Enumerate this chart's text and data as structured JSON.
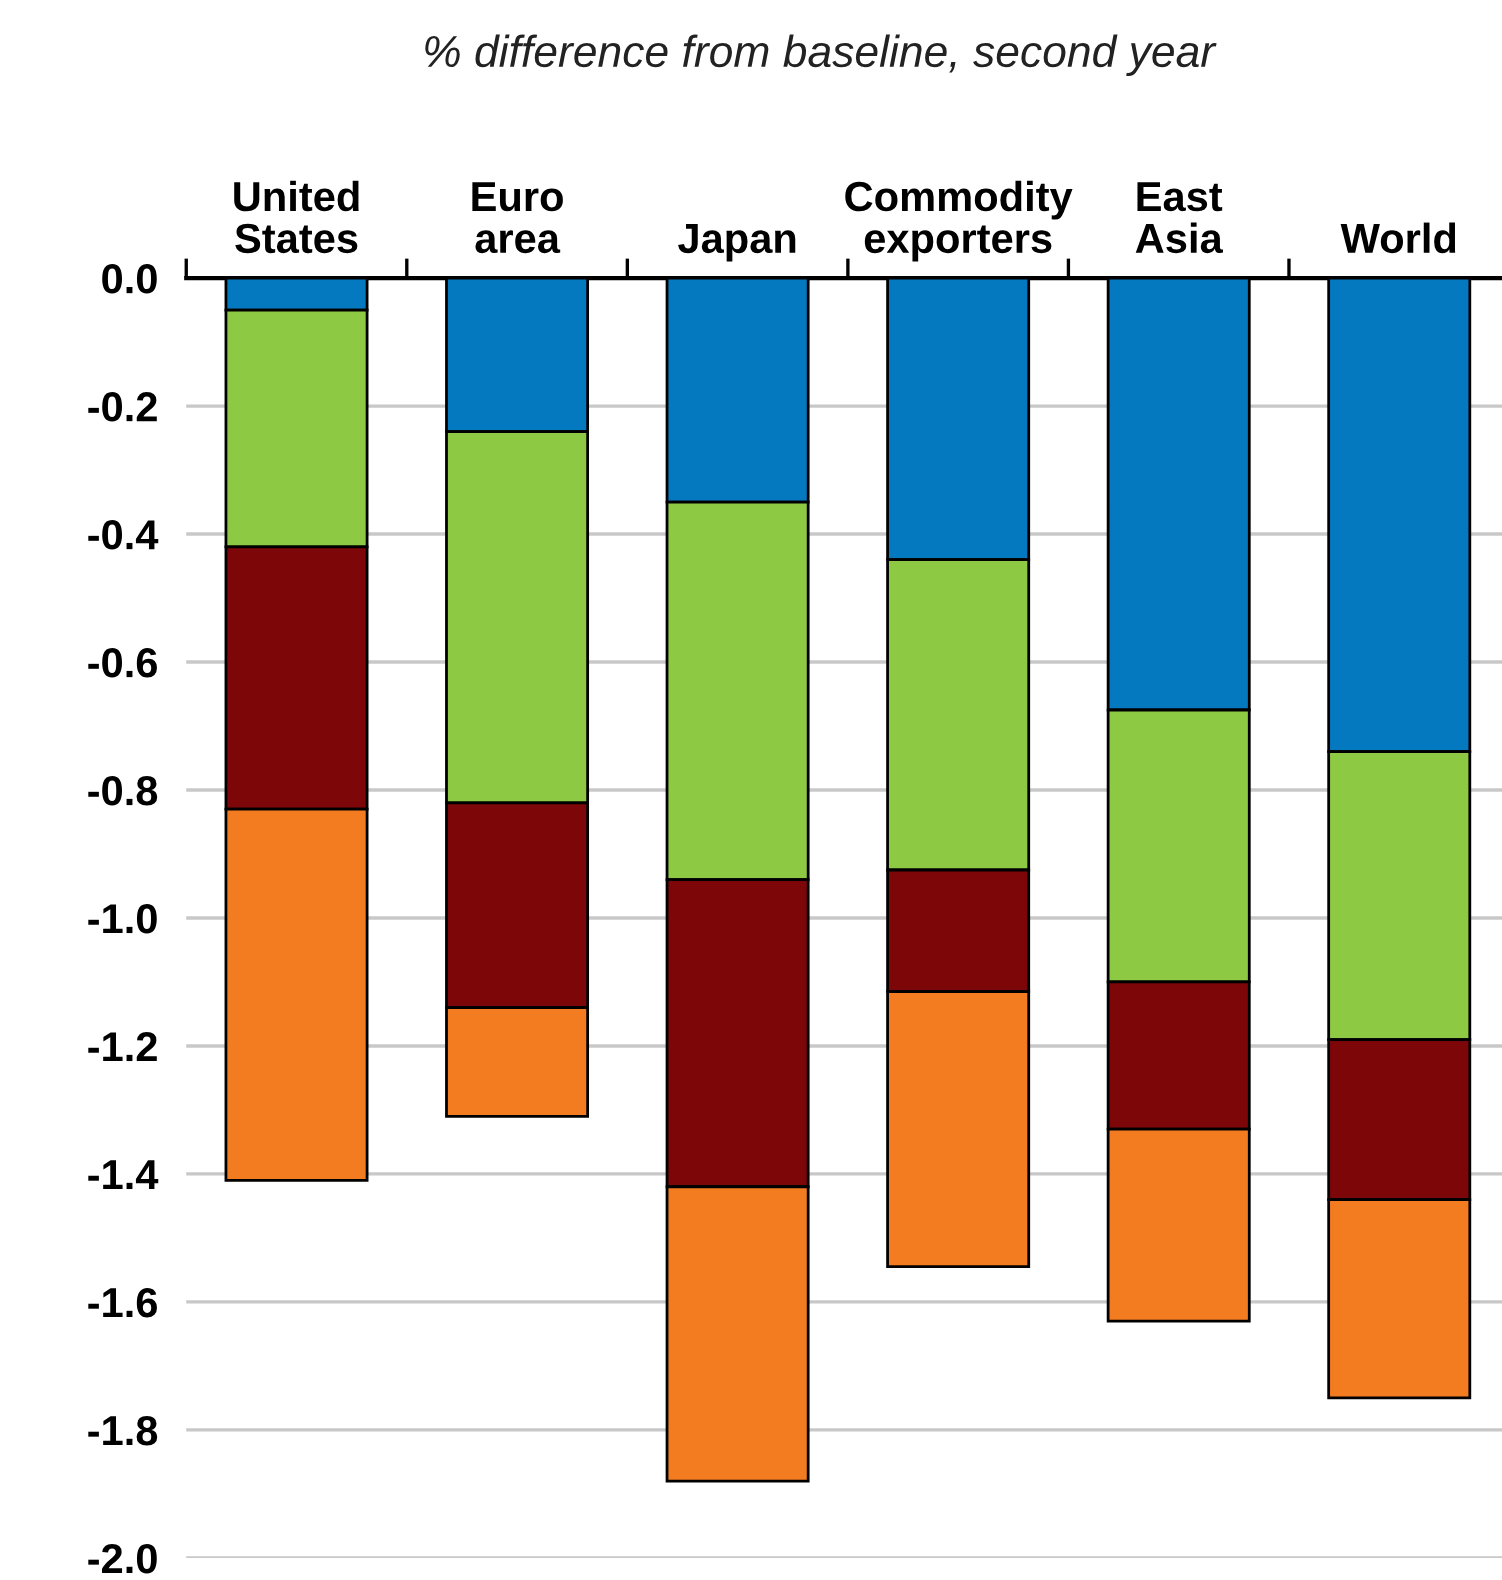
{
  "chart_data": {
    "type": "bar",
    "subtitle": "% difference from baseline, second year",
    "categories": [
      "United\nStates",
      "Euro\narea",
      "Japan",
      "Commodity\nexporters",
      "East\nAsia",
      "World"
    ],
    "stacked": true,
    "series": [
      {
        "color": "#0579c0",
        "values": [
          -0.05,
          -0.24,
          -0.35,
          -0.44,
          -0.675,
          -0.74
        ]
      },
      {
        "color": "#8dc943",
        "values": [
          -0.37,
          -0.58,
          -0.59,
          -0.485,
          -0.425,
          -0.45
        ]
      },
      {
        "color": "#7d0609",
        "values": [
          -0.41,
          -0.32,
          -0.48,
          -0.19,
          -0.23,
          -0.25
        ]
      },
      {
        "color": "#f47c20",
        "values": [
          -0.58,
          -0.17,
          -0.46,
          -0.43,
          -0.3,
          -0.31
        ]
      }
    ],
    "ylim": [
      -2.0,
      0.0
    ],
    "yticks": [
      {
        "value": 0.0,
        "label": "0.0"
      },
      {
        "value": -0.2,
        "label": "-0.2"
      },
      {
        "value": -0.4,
        "label": "-0.4"
      },
      {
        "value": -0.6,
        "label": "-0.6"
      },
      {
        "value": -0.8,
        "label": "-0.8"
      },
      {
        "value": -1.0,
        "label": "-1.0"
      },
      {
        "value": -1.2,
        "label": "-1.2"
      },
      {
        "value": -1.4,
        "label": "-1.4"
      },
      {
        "value": -1.6,
        "label": "-1.6"
      },
      {
        "value": -1.8,
        "label": "-1.8"
      },
      {
        "value": -2.0,
        "label": "-2.0"
      }
    ],
    "grid": "y",
    "legend": false
  }
}
